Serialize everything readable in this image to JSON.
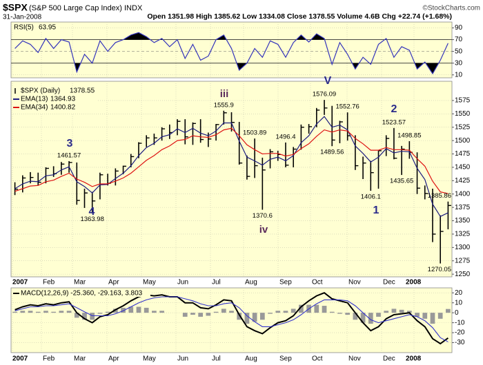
{
  "title": "$SPX",
  "subtitle": "(S&P 500 Large Cap Index) INDX",
  "date": "31-Jan-2008",
  "quote": "Open 1351.98 High 1385.62 Low 1334.08 Close 1378.55 Volume 4.6B Chg +22.74 (+1.68%)",
  "source": "©StockCharts.com",
  "x_labels": [
    "2007",
    "Feb",
    "Mar",
    "Apr",
    "May",
    "Jun",
    "Jul",
    "Aug",
    "Sep",
    "Oct",
    "Nov",
    "Dec",
    "2008"
  ],
  "chart_data": [
    {
      "type": "line",
      "ylim": [
        5,
        100
      ],
      "yticks": [
        10,
        30,
        50,
        70,
        90
      ],
      "series": [
        {
          "name": "RSI(5)",
          "color": "#3333bb",
          "values": [
            55,
            68,
            62,
            48,
            72,
            55,
            70,
            66,
            15,
            45,
            30,
            68,
            50,
            65,
            70,
            78,
            82,
            75,
            65,
            72,
            58,
            70,
            38,
            62,
            35,
            42,
            70,
            78,
            55,
            18,
            30,
            55,
            40,
            68,
            62,
            40,
            65,
            78,
            66,
            80,
            72,
            28,
            65,
            45,
            20,
            40,
            28,
            62,
            72,
            40,
            58,
            52,
            20,
            32,
            12,
            35,
            63.95
          ]
        }
      ]
    },
    {
      "type": "ohlc",
      "name": "$SPX (Daily)",
      "color": "#000000",
      "ylim": [
        1245,
        1611
      ],
      "yticks": [
        1250,
        1275,
        1300,
        1325,
        1350,
        1375,
        1400,
        1425,
        1450,
        1475,
        1500,
        1525,
        1550,
        1575
      ],
      "grid": true,
      "high": [
        1422,
        1435,
        1441,
        1440,
        1450,
        1452,
        1460,
        1461.57,
        1459,
        1410,
        1404,
        1440,
        1438,
        1448,
        1453,
        1475,
        1497,
        1510,
        1513,
        1525,
        1530,
        1540,
        1540,
        1534,
        1540,
        1515,
        1531,
        1555.9,
        1553,
        1535,
        1472,
        1503.89,
        1468,
        1484,
        1481,
        1496.4,
        1488,
        1530,
        1531,
        1561,
        1576.09,
        1565,
        1537,
        1552.76,
        1510,
        1470,
        1462,
        1481,
        1510,
        1523.57,
        1490,
        1498.85,
        1478,
        1416,
        1410,
        1360,
        1385.86
      ],
      "low": [
        1398,
        1403,
        1420,
        1416,
        1420,
        1432,
        1436,
        1440,
        1380,
        1374,
        1363.98,
        1390,
        1416,
        1416,
        1437,
        1450,
        1467,
        1488,
        1492,
        1500,
        1503,
        1510,
        1493,
        1492,
        1496,
        1488,
        1500,
        1530,
        1517,
        1455,
        1427,
        1430,
        1370.6,
        1448,
        1462,
        1450,
        1450,
        1483,
        1513,
        1525,
        1548,
        1489.56,
        1495,
        1500,
        1445,
        1428,
        1406.1,
        1410,
        1471,
        1465,
        1435.65,
        1466,
        1400,
        1390,
        1310,
        1270.05,
        1334
      ],
      "close": [
        1409,
        1430,
        1431,
        1422,
        1448,
        1438,
        1456,
        1459,
        1388,
        1402,
        1387,
        1436,
        1420,
        1443,
        1452,
        1470,
        1495,
        1505,
        1505,
        1522,
        1515,
        1536,
        1507,
        1532,
        1502,
        1503,
        1530,
        1552,
        1534,
        1458,
        1433,
        1453,
        1445,
        1479,
        1474,
        1454,
        1484,
        1525,
        1526,
        1557,
        1561,
        1501,
        1535,
        1509,
        1453,
        1458,
        1440,
        1481,
        1504,
        1467,
        1484,
        1478,
        1411,
        1401,
        1325,
        1330,
        1378.55
      ],
      "series": [
        {
          "name": "EMA(13)",
          "color": "#1a1a80",
          "values": [
            1410,
            1419,
            1424,
            1423,
            1434,
            1436,
            1445,
            1451,
            1423,
            1414,
            1402,
            1417,
            1418,
            1429,
            1439,
            1453,
            1472,
            1487,
            1495,
            1507,
            1511,
            1522,
            1515,
            1523,
            1514,
            1509,
            1518,
            1533,
            1533,
            1499,
            1469,
            1462,
            1454,
            1465,
            1469,
            1462,
            1472,
            1496,
            1509,
            1531,
            1545,
            1525,
            1529,
            1520,
            1490,
            1476,
            1460,
            1469,
            1485,
            1477,
            1480,
            1479,
            1448,
            1427,
            1381,
            1358,
            1364.93
          ]
        },
        {
          "name": "EMA(34)",
          "color": "#dd1111",
          "values": [
            1405,
            1410,
            1415,
            1416,
            1423,
            1426,
            1433,
            1439,
            1428,
            1422,
            1414,
            1419,
            1419,
            1424,
            1430,
            1439,
            1451,
            1463,
            1472,
            1483,
            1490,
            1500,
            1502,
            1509,
            1507,
            1506,
            1511,
            1520,
            1523,
            1509,
            1492,
            1483,
            1475,
            1476,
            1476,
            1471,
            1474,
            1485,
            1494,
            1508,
            1520,
            1516,
            1520,
            1518,
            1504,
            1494,
            1482,
            1482,
            1487,
            1483,
            1483,
            1482,
            1466,
            1452,
            1424,
            1404,
            1400.82
          ]
        }
      ],
      "wave_labels": [
        "3",
        "4",
        "iii",
        "iv",
        "V",
        "2",
        "1"
      ]
    },
    {
      "type": "macd",
      "legend": "MACD(12,26,9) -25.360, -29.163, 3.803",
      "ylim": [
        -40,
        25
      ],
      "yticks": [
        20,
        10,
        0,
        -10,
        -20,
        -30
      ],
      "series": [
        {
          "color": "#000000",
          "values": [
            3,
            6,
            8,
            7,
            9,
            8,
            10,
            11,
            0,
            -6,
            -10,
            -4,
            -2,
            3,
            7,
            12,
            16,
            18,
            17,
            18,
            16,
            16,
            10,
            10,
            5,
            4,
            8,
            13,
            12,
            -2,
            -14,
            -18,
            -21,
            -15,
            -10,
            -8,
            -3,
            6,
            12,
            17,
            20,
            14,
            12,
            10,
            0,
            -10,
            -18,
            -14,
            -6,
            -2,
            -1,
            0,
            -8,
            -14,
            -26,
            -31,
            -25.36
          ]
        },
        {
          "color": "#3333cc",
          "values": [
            2,
            4,
            6,
            6,
            7,
            7,
            8,
            9,
            5,
            1,
            -3,
            -3,
            -3,
            -1,
            2,
            6,
            10,
            13,
            15,
            16,
            16,
            16,
            14,
            12,
            9,
            7,
            7,
            9,
            10,
            5,
            -3,
            -9,
            -14,
            -14,
            -12,
            -10,
            -7,
            -2,
            4,
            9,
            13,
            13,
            13,
            12,
            7,
            0,
            -7,
            -10,
            -8,
            -6,
            -4,
            -2,
            -4,
            -8,
            -15,
            -25,
            -29.163
          ]
        }
      ],
      "histogram": {
        "color": "#999999",
        "values": [
          1,
          2,
          2,
          1,
          2,
          1,
          2,
          2,
          -5,
          -7,
          -7,
          -1,
          1,
          4,
          5,
          6,
          6,
          5,
          2,
          2,
          0,
          0,
          -4,
          -2,
          -4,
          -3,
          1,
          4,
          2,
          -7,
          -11,
          -9,
          -7,
          -1,
          2,
          2,
          4,
          8,
          8,
          8,
          7,
          1,
          -1,
          -2,
          -7,
          -10,
          -11,
          -4,
          2,
          4,
          3,
          2,
          -4,
          -6,
          -11,
          -6,
          3.803
        ]
      }
    }
  ]
}
